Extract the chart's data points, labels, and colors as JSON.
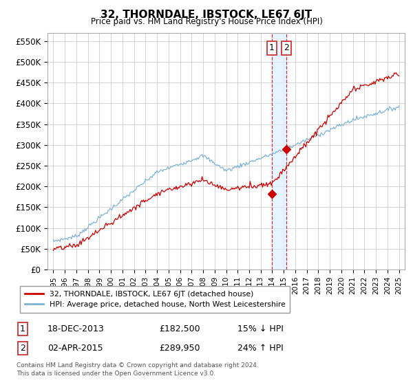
{
  "title": "32, THORNDALE, IBSTOCK, LE67 6JT",
  "subtitle": "Price paid vs. HM Land Registry's House Price Index (HPI)",
  "ylabel_ticks": [
    "£0",
    "£50K",
    "£100K",
    "£150K",
    "£200K",
    "£250K",
    "£300K",
    "£350K",
    "£400K",
    "£450K",
    "£500K",
    "£550K"
  ],
  "ytick_values": [
    0,
    50000,
    100000,
    150000,
    200000,
    250000,
    300000,
    350000,
    400000,
    450000,
    500000,
    550000
  ],
  "xlim": [
    1994.5,
    2025.5
  ],
  "ylim": [
    0,
    570000
  ],
  "legend_line1": "32, THORNDALE, IBSTOCK, LE67 6JT (detached house)",
  "legend_line2": "HPI: Average price, detached house, North West Leicestershire",
  "legend_color1": "#cc0000",
  "legend_color2": "#7fb3d3",
  "marker1_year": 2013.96,
  "marker1_value": 182500,
  "marker1_label": "1",
  "marker2_year": 2015.25,
  "marker2_value": 289950,
  "marker2_label": "2",
  "footnote1": "Contains HM Land Registry data © Crown copyright and database right 2024.",
  "footnote2": "This data is licensed under the Open Government Licence v3.0.",
  "table_row1": [
    "1",
    "18-DEC-2013",
    "£182,500",
    "15% ↓ HPI"
  ],
  "table_row2": [
    "2",
    "02-APR-2015",
    "£289,950",
    "24% ↑ HPI"
  ],
  "background_color": "#ffffff",
  "grid_color": "#cccccc",
  "shade_color": "#ddeeff"
}
